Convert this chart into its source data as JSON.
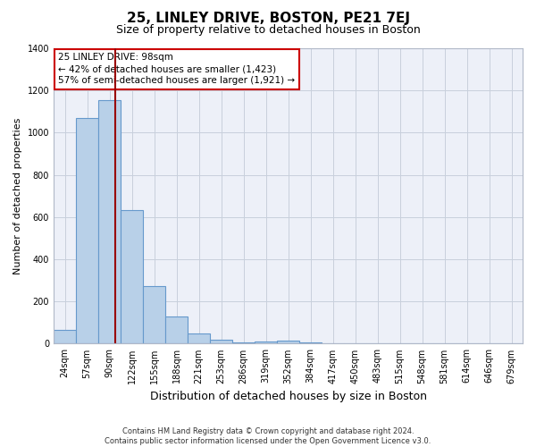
{
  "title": "25, LINLEY DRIVE, BOSTON, PE21 7EJ",
  "subtitle": "Size of property relative to detached houses in Boston",
  "xlabel": "Distribution of detached houses by size in Boston",
  "ylabel": "Number of detached properties",
  "categories": [
    "24sqm",
    "57sqm",
    "90sqm",
    "122sqm",
    "155sqm",
    "188sqm",
    "221sqm",
    "253sqm",
    "286sqm",
    "319sqm",
    "352sqm",
    "384sqm",
    "417sqm",
    "450sqm",
    "483sqm",
    "515sqm",
    "548sqm",
    "581sqm",
    "614sqm",
    "646sqm",
    "679sqm"
  ],
  "values": [
    65,
    1070,
    1155,
    635,
    275,
    130,
    50,
    20,
    5,
    10,
    15,
    5,
    0,
    0,
    0,
    0,
    0,
    0,
    0,
    0,
    0
  ],
  "bar_color": "#b8d0e8",
  "bar_edgecolor": "#6699cc",
  "vline_color": "#990000",
  "annotation_text": "25 LINLEY DRIVE: 98sqm\n← 42% of detached houses are smaller (1,423)\n57% of semi-detached houses are larger (1,921) →",
  "annotation_box_edgecolor": "#cc0000",
  "annotation_box_facecolor": "#ffffff",
  "ylim": [
    0,
    1400
  ],
  "yticks": [
    0,
    200,
    400,
    600,
    800,
    1000,
    1200,
    1400
  ],
  "grid_color": "#c8d0dc",
  "background_color": "#edf0f8",
  "footer_line1": "Contains HM Land Registry data © Crown copyright and database right 2024.",
  "footer_line2": "Contains public sector information licensed under the Open Government Licence v3.0.",
  "title_fontsize": 11,
  "subtitle_fontsize": 9,
  "tick_fontsize": 7,
  "ylabel_fontsize": 8,
  "xlabel_fontsize": 9,
  "annotation_fontsize": 7.5,
  "footer_fontsize": 6
}
